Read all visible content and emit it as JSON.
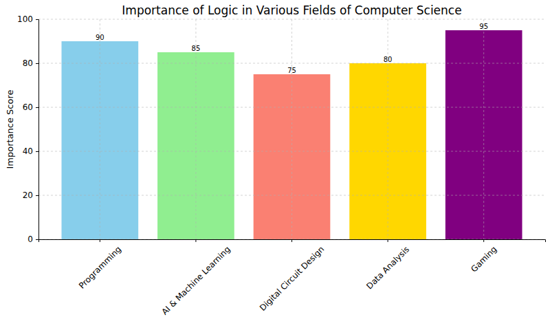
{
  "chart_data": {
    "type": "bar",
    "title": "Importance of Logic in Various Fields of Computer Science",
    "y_label": "Importance Score",
    "categories": [
      "Programming",
      "AI & Machine Learning",
      "Digital Circuit Design",
      "Data Analysis",
      "Gaming"
    ],
    "values": [
      90,
      85,
      75,
      80,
      95
    ],
    "colors": [
      "#87ceeb",
      "#90ee90",
      "#fa8072",
      "#ffd700",
      "#800080"
    ],
    "ylim": [
      0,
      100
    ],
    "yticks": [
      0,
      20,
      40,
      60,
      80,
      100
    ],
    "grid": true,
    "data_labels": true
  }
}
